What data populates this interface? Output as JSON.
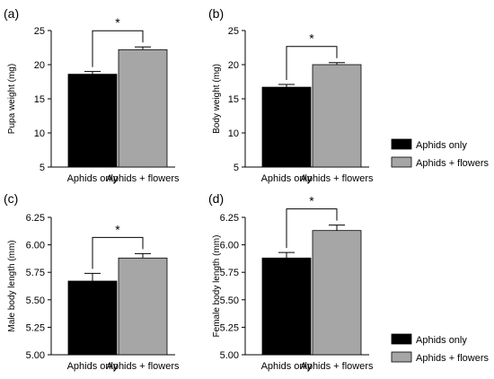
{
  "chart_data": [
    {
      "type": "bar",
      "panel_label": "(a)",
      "ylabel": "Pupa weight (mg)",
      "categories": [
        "Aphids only",
        "Aphids + flowers"
      ],
      "values": [
        18.6,
        22.2
      ],
      "errors": [
        0.4,
        0.4
      ],
      "ylim": [
        5,
        25
      ],
      "yticks": [
        "5",
        "10",
        "15",
        "20",
        "25"
      ],
      "significance": "*",
      "colors": [
        "#000000",
        "#a6a6a6"
      ]
    },
    {
      "type": "bar",
      "panel_label": "(b)",
      "ylabel": "Body weight (mg)",
      "categories": [
        "Aphids only",
        "Aphids + flowers"
      ],
      "values": [
        16.7,
        20.0
      ],
      "errors": [
        0.4,
        0.3
      ],
      "ylim": [
        5,
        25
      ],
      "yticks": [
        "5",
        "10",
        "15",
        "20",
        "25"
      ],
      "significance": "*",
      "colors": [
        "#000000",
        "#a6a6a6"
      ]
    },
    {
      "type": "bar",
      "panel_label": "(c)",
      "ylabel": "Male body length (mm)",
      "categories": [
        "Aphids only",
        "Aphids + flowers"
      ],
      "values": [
        5.67,
        5.88
      ],
      "errors": [
        0.07,
        0.04
      ],
      "ylim": [
        5.0,
        6.25
      ],
      "yticks": [
        "5.00",
        "5.25",
        "5.50",
        "5.75",
        "6.00",
        "6.25"
      ],
      "significance": "*",
      "colors": [
        "#000000",
        "#a6a6a6"
      ]
    },
    {
      "type": "bar",
      "panel_label": "(d)",
      "ylabel": "Female body length (mm)",
      "categories": [
        "Aphids only",
        "Aphids + flowers"
      ],
      "values": [
        5.88,
        6.13
      ],
      "errors": [
        0.05,
        0.05
      ],
      "ylim": [
        5.0,
        6.25
      ],
      "yticks": [
        "5.00",
        "5.25",
        "5.50",
        "5.75",
        "6.00",
        "6.25"
      ],
      "significance": "*",
      "colors": [
        "#000000",
        "#a6a6a6"
      ]
    }
  ],
  "legends": [
    {
      "items": [
        {
          "label": "Aphids only",
          "color": "#000000"
        },
        {
          "label": "Aphids + flowers",
          "color": "#a6a6a6"
        }
      ]
    },
    {
      "items": [
        {
          "label": "Aphids only",
          "color": "#000000"
        },
        {
          "label": "Aphids + flowers",
          "color": "#a6a6a6"
        }
      ]
    }
  ]
}
